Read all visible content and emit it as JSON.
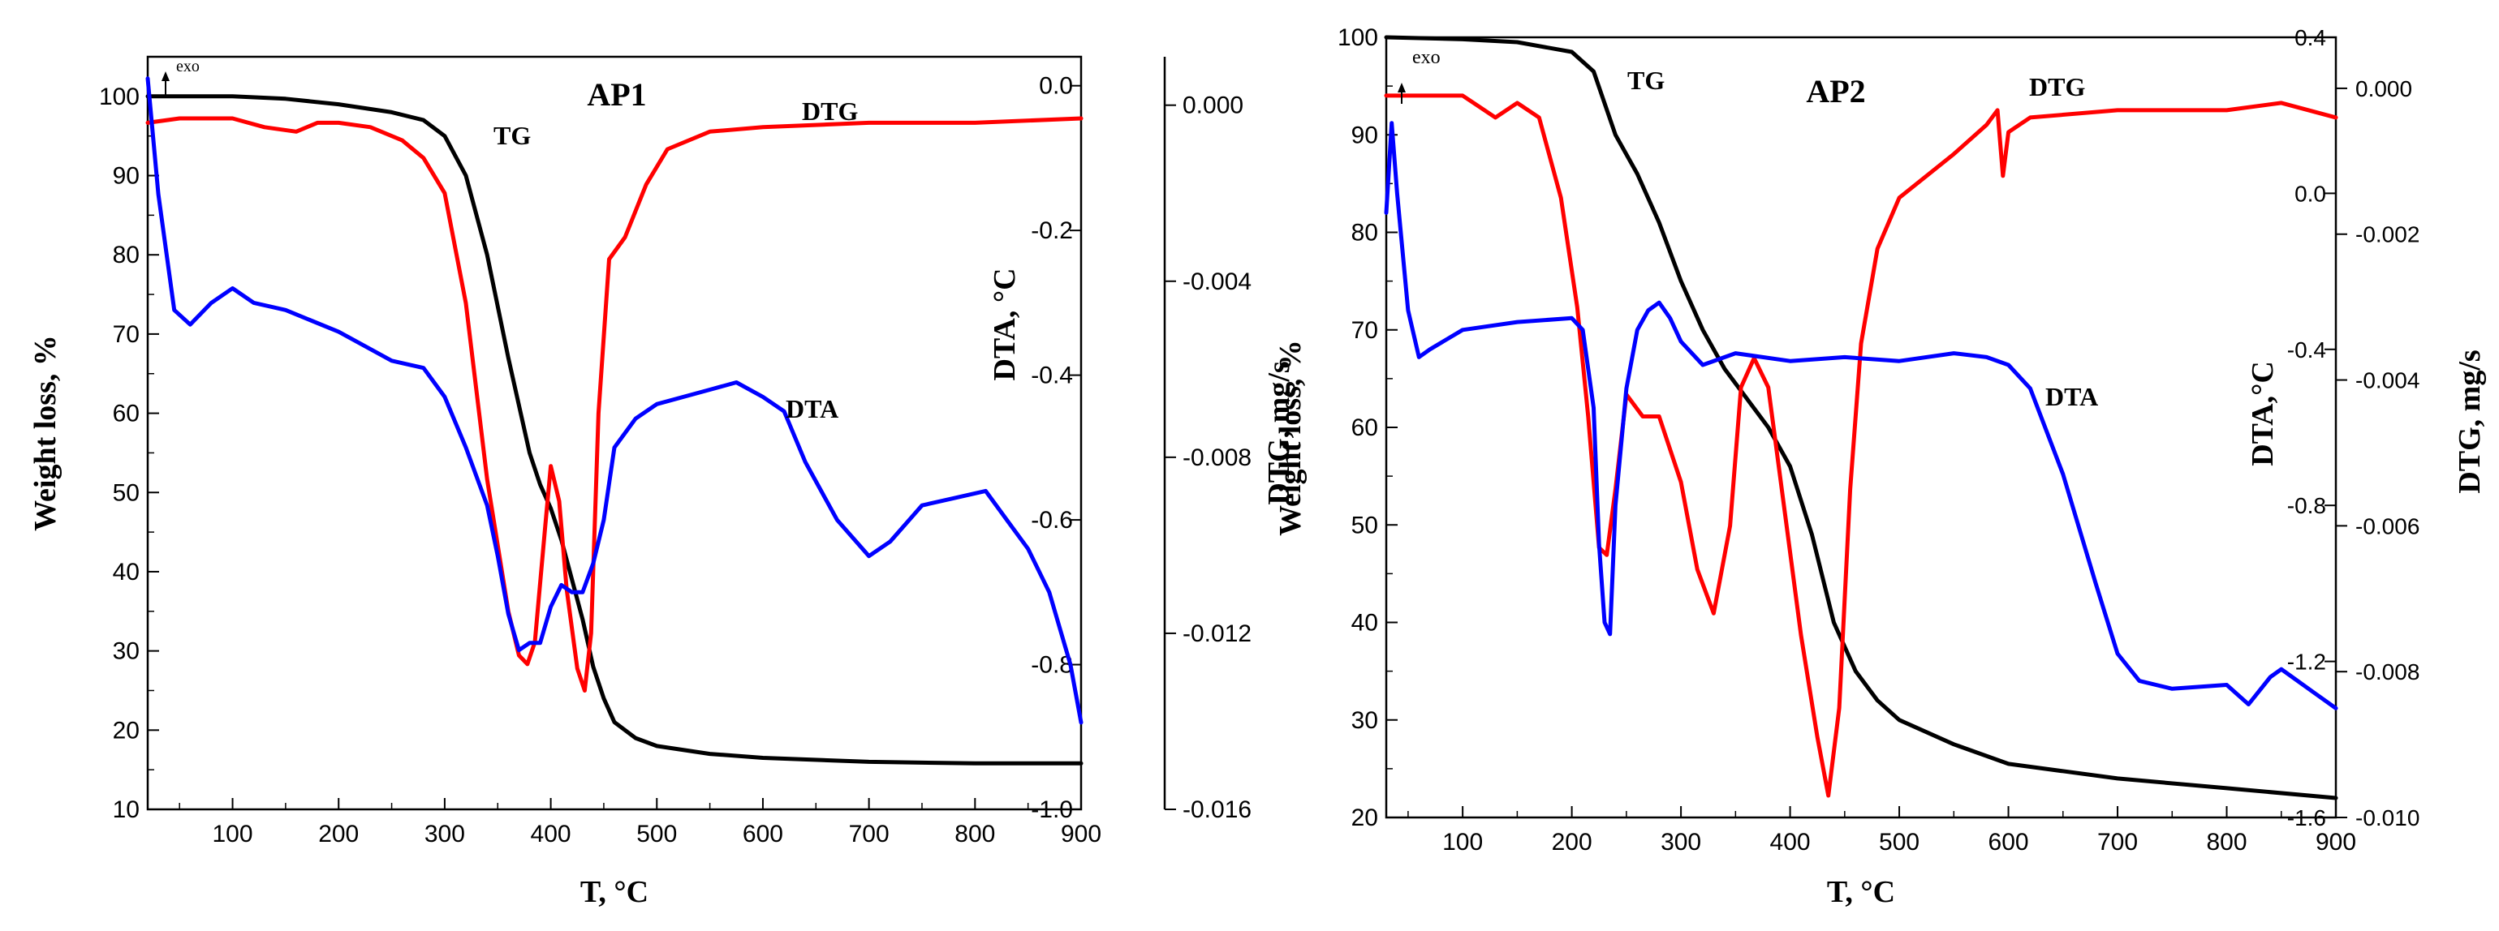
{
  "colors": {
    "tg": "#000000",
    "dtg": "#ff0000",
    "dta": "#0000ff",
    "axis": "#000000"
  },
  "chart_data": [
    {
      "type": "line",
      "title": "AP1",
      "exo_label": "exo",
      "xlabel": "T, °C",
      "ylabel_left": "Weight loss, %",
      "ylabel_dta": "DTA, °C",
      "ylabel_dtg": "DTG, mg/s",
      "xlim": [
        20,
        900
      ],
      "x_ticks": [
        "100",
        "200",
        "300",
        "400",
        "500",
        "600",
        "700",
        "800",
        "900"
      ],
      "ylim_tg": [
        10,
        105
      ],
      "y_ticks_tg": [
        "10",
        "20",
        "30",
        "40",
        "50",
        "60",
        "70",
        "80",
        "90",
        "100"
      ],
      "ylim_dta": [
        -1.0,
        0.04
      ],
      "y_ticks_dta": [
        "0.0",
        "-0.2",
        "-0.4",
        "-0.6",
        "-0.8",
        "-1.0"
      ],
      "ylim_dtg": [
        -0.016,
        0.0011
      ],
      "y_ticks_dtg": [
        "0.000",
        "-0.004",
        "-0.008",
        "-0.012",
        "-0.016"
      ],
      "series_labels": {
        "tg": "TG",
        "dtg": "DTG",
        "dta": "DTA"
      },
      "series": [
        {
          "name": "TG",
          "axis": "tg",
          "x": [
            20,
            100,
            150,
            200,
            250,
            280,
            300,
            320,
            340,
            360,
            380,
            390,
            400,
            410,
            420,
            430,
            440,
            450,
            460,
            480,
            500,
            550,
            600,
            700,
            800,
            900
          ],
          "y": [
            100,
            100,
            99.7,
            99,
            98,
            97,
            95,
            90,
            80,
            67,
            55,
            51,
            48,
            44,
            39,
            34,
            28,
            24,
            21,
            19,
            18,
            17,
            16.5,
            16,
            15.8,
            15.8
          ]
        },
        {
          "name": "DTG",
          "axis": "dtg",
          "x": [
            20,
            50,
            100,
            130,
            160,
            180,
            200,
            230,
            260,
            280,
            300,
            320,
            340,
            360,
            370,
            378,
            385,
            395,
            400,
            408,
            415,
            425,
            432,
            438,
            445,
            455,
            470,
            490,
            510,
            550,
            600,
            700,
            800,
            900
          ],
          "y": [
            -0.0004,
            -0.0003,
            -0.0003,
            -0.0005,
            -0.0006,
            -0.0004,
            -0.0004,
            -0.0005,
            -0.0008,
            -0.0012,
            -0.002,
            -0.0045,
            -0.0085,
            -0.0115,
            -0.0125,
            -0.0127,
            -0.0122,
            -0.0095,
            -0.0082,
            -0.009,
            -0.011,
            -0.0128,
            -0.0133,
            -0.012,
            -0.007,
            -0.0035,
            -0.003,
            -0.0018,
            -0.001,
            -0.0006,
            -0.0005,
            -0.0004,
            -0.0004,
            -0.0003
          ]
        },
        {
          "name": "DTA",
          "axis": "dta",
          "x": [
            20,
            30,
            45,
            60,
            80,
            100,
            120,
            150,
            200,
            250,
            280,
            300,
            320,
            340,
            350,
            360,
            370,
            380,
            390,
            400,
            410,
            420,
            430,
            440,
            450,
            460,
            480,
            500,
            550,
            575,
            600,
            620,
            640,
            670,
            700,
            720,
            750,
            780,
            810,
            830,
            850,
            870,
            890,
            900
          ],
          "y": [
            0.01,
            -0.15,
            -0.31,
            -0.33,
            -0.3,
            -0.28,
            -0.3,
            -0.31,
            -0.34,
            -0.38,
            -0.39,
            -0.43,
            -0.5,
            -0.58,
            -0.65,
            -0.73,
            -0.78,
            -0.77,
            -0.77,
            -0.72,
            -0.69,
            -0.7,
            -0.7,
            -0.66,
            -0.6,
            -0.5,
            -0.46,
            -0.44,
            -0.42,
            -0.41,
            -0.43,
            -0.45,
            -0.52,
            -0.6,
            -0.65,
            -0.63,
            -0.58,
            -0.57,
            -0.56,
            -0.6,
            -0.64,
            -0.7,
            -0.8,
            -0.88
          ]
        }
      ],
      "annotations": [
        "AP1",
        "TG",
        "DTG",
        "DTA",
        "exo"
      ]
    },
    {
      "type": "line",
      "title": "AP2",
      "exo_label": "exo",
      "xlabel": "T, °C",
      "ylabel_left": "Weight loss, %",
      "ylabel_dta": "DTA,°C",
      "ylabel_dtg": "DTG, mg/s",
      "xlim": [
        30,
        900
      ],
      "x_ticks": [
        "100",
        "200",
        "300",
        "400",
        "500",
        "600",
        "700",
        "800",
        "900"
      ],
      "ylim_tg": [
        20,
        100
      ],
      "y_ticks_tg": [
        "20",
        "30",
        "40",
        "50",
        "60",
        "70",
        "80",
        "90",
        "100"
      ],
      "ylim_dta": [
        -1.6,
        0.4
      ],
      "y_ticks_dta": [
        "0.4",
        "0.0",
        "-0.4",
        "-0.8",
        "-1.2",
        "-1.6"
      ],
      "ylim_dtg": [
        -0.01,
        0.0007
      ],
      "y_ticks_dtg": [
        "0.000",
        "-0.002",
        "-0.004",
        "-0.006",
        "-0.008",
        "-0.010"
      ],
      "series_labels": {
        "tg": "TG",
        "dtg": "DTG",
        "dta": "DTA"
      },
      "series": [
        {
          "name": "TG",
          "axis": "tg",
          "x": [
            30,
            100,
            150,
            200,
            220,
            240,
            260,
            280,
            300,
            320,
            340,
            360,
            380,
            400,
            420,
            440,
            460,
            480,
            500,
            550,
            600,
            700,
            800,
            900
          ],
          "y": [
            100,
            99.8,
            99.5,
            98.5,
            96.5,
            90,
            86,
            81,
            75,
            70,
            66,
            63,
            60,
            56,
            49,
            40,
            35,
            32,
            30,
            27.5,
            25.5,
            24,
            23,
            22
          ]
        },
        {
          "name": "DTG",
          "axis": "dtg",
          "x": [
            30,
            100,
            130,
            150,
            170,
            190,
            205,
            215,
            225,
            232,
            240,
            250,
            265,
            280,
            300,
            315,
            330,
            345,
            355,
            367,
            380,
            395,
            410,
            425,
            435,
            445,
            455,
            465,
            480,
            500,
            550,
            580,
            590,
            595,
            600,
            620,
            700,
            800,
            850,
            900
          ],
          "y": [
            -0.0001,
            -0.0001,
            -0.0004,
            -0.0002,
            -0.0004,
            -0.0015,
            -0.003,
            -0.0045,
            -0.0063,
            -0.0064,
            -0.0055,
            -0.0042,
            -0.0045,
            -0.0045,
            -0.0054,
            -0.0066,
            -0.0072,
            -0.006,
            -0.0041,
            -0.0037,
            -0.0041,
            -0.0058,
            -0.0075,
            -0.0089,
            -0.0097,
            -0.0085,
            -0.0055,
            -0.0035,
            -0.0022,
            -0.0015,
            -0.0009,
            -0.0005,
            -0.0003,
            -0.0012,
            -0.0006,
            -0.0004,
            -0.0003,
            -0.0003,
            -0.0002,
            -0.0004
          ]
        },
        {
          "name": "DTA",
          "axis": "dta",
          "x": [
            30,
            35,
            40,
            50,
            60,
            70,
            100,
            150,
            200,
            210,
            220,
            225,
            230,
            235,
            240,
            250,
            260,
            270,
            280,
            290,
            300,
            320,
            350,
            400,
            450,
            500,
            550,
            580,
            600,
            620,
            650,
            680,
            700,
            720,
            750,
            800,
            820,
            840,
            850,
            860,
            880,
            900
          ],
          "y": [
            -0.05,
            0.18,
            0.0,
            -0.3,
            -0.42,
            -0.4,
            -0.35,
            -0.33,
            -0.32,
            -0.35,
            -0.55,
            -0.9,
            -1.1,
            -1.13,
            -0.8,
            -0.5,
            -0.35,
            -0.3,
            -0.28,
            -0.32,
            -0.38,
            -0.44,
            -0.41,
            -0.43,
            -0.42,
            -0.43,
            -0.41,
            -0.42,
            -0.44,
            -0.5,
            -0.72,
            -1.0,
            -1.18,
            -1.25,
            -1.27,
            -1.26,
            -1.31,
            -1.24,
            -1.22,
            -1.24,
            -1.28,
            -1.32
          ]
        }
      ],
      "annotations": [
        "AP2",
        "TG",
        "DTG",
        "DTA",
        "exo"
      ]
    }
  ]
}
